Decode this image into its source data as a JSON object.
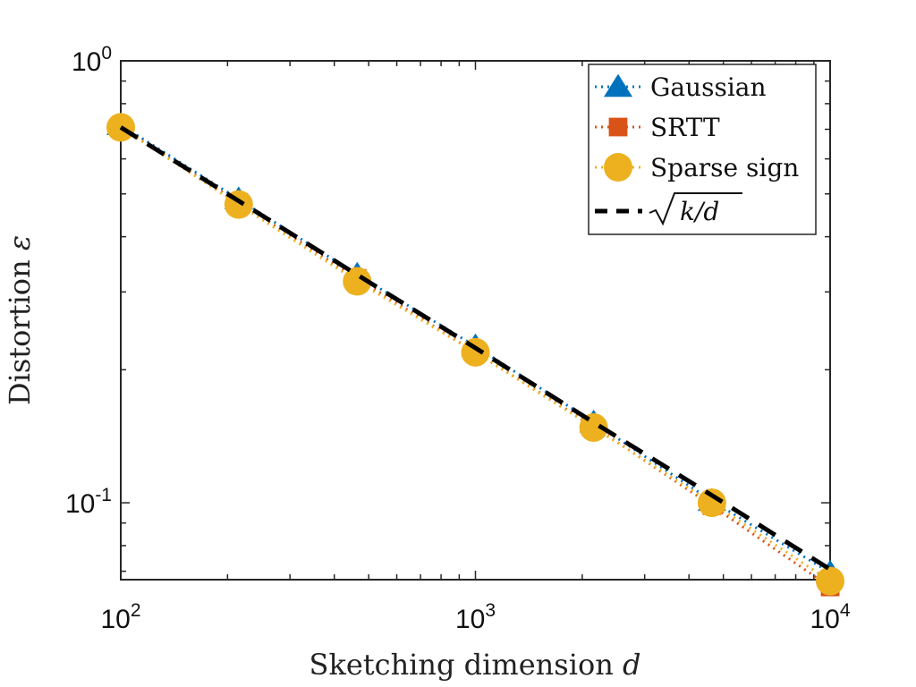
{
  "chart_data": {
    "type": "line",
    "title": "",
    "xlabel": {
      "text": "Sketching dimension ",
      "var": "d"
    },
    "ylabel": {
      "text": "Distortion ",
      "var": "ε"
    },
    "xscale": "log",
    "yscale": "log",
    "xlim": [
      100,
      10000
    ],
    "ylim": [
      0.067,
      1
    ],
    "xticks": [
      {
        "value": 100,
        "base": "10",
        "exp": "2"
      },
      {
        "value": 1000,
        "base": "10",
        "exp": "3"
      },
      {
        "value": 10000,
        "base": "10",
        "exp": "4"
      }
    ],
    "yticks": [
      {
        "value": 0.1,
        "base": "10",
        "exp": "-1"
      },
      {
        "value": 1,
        "base": "10",
        "exp": "0"
      }
    ],
    "grid": false,
    "box": true,
    "legend_position": "top-right",
    "x": [
      100,
      215,
      464,
      1000,
      2154,
      4642,
      10000
    ],
    "series": [
      {
        "name": "Gaussian",
        "marker": "triangle",
        "line": "dotted",
        "color": "#0072BD",
        "values": [
          0.716,
          0.486,
          0.328,
          0.226,
          0.152,
          0.101,
          0.0695
        ]
      },
      {
        "name": "SRTT",
        "marker": "square",
        "line": "dotted",
        "color": "#D95319",
        "values": [
          0.708,
          0.478,
          0.322,
          0.219,
          0.149,
          0.0985,
          0.0645
        ]
      },
      {
        "name": "Sparse sign",
        "marker": "circle",
        "line": "dotted",
        "color": "#EDB120",
        "values": [
          0.707,
          0.473,
          0.317,
          0.219,
          0.148,
          0.1,
          0.0665
        ]
      },
      {
        "name": "sqrt(k/d)",
        "marker": "none",
        "line": "dashed",
        "color": "#000000",
        "values": [
          0.707,
          0.482,
          0.328,
          0.224,
          0.152,
          0.104,
          0.0707
        ]
      }
    ]
  }
}
